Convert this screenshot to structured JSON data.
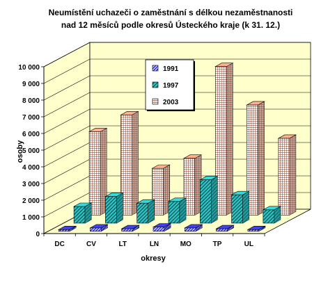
{
  "chart_data": {
    "type": "bar",
    "title_line1": "Neumístění uchazeči o zaměstnání s délkou nezaměstnanosti",
    "title_line2": "nad 12 měsíců podle okresů Ústeckého kraje (k 31. 12.)",
    "xlabel": "okresy",
    "ylabel": "osoby",
    "ylim": [
      0,
      10000
    ],
    "yticks": [
      "0",
      "1 000",
      "2 000",
      "3 000",
      "4 000",
      "5 000",
      "6 000",
      "7 000",
      "8 000",
      "9 000",
      "10 000"
    ],
    "categories": [
      "DC",
      "CV",
      "LT",
      "LN",
      "MO",
      "TP",
      "UL"
    ],
    "legend_position": "top-center",
    "series": [
      {
        "name": "1991",
        "values": [
          100,
          200,
          150,
          250,
          200,
          150,
          100
        ]
      },
      {
        "name": "1997",
        "values": [
          1000,
          1600,
          1200,
          1300,
          2600,
          1700,
          800
        ]
      },
      {
        "name": "2003",
        "values": [
          5000,
          6000,
          2800,
          3400,
          8900,
          6600,
          4600
        ]
      }
    ],
    "colors": {
      "s1991_face": "#3a3ad8",
      "s1991_hatch": "#ffffff",
      "s1997_face": "#2ec7c9",
      "s1997_hatch": "#0b5252",
      "s2003_face": "#e9a080",
      "s2003_grid": "#8a2a10",
      "wall": "#ffffcc",
      "floor": "#ffffcc"
    }
  }
}
